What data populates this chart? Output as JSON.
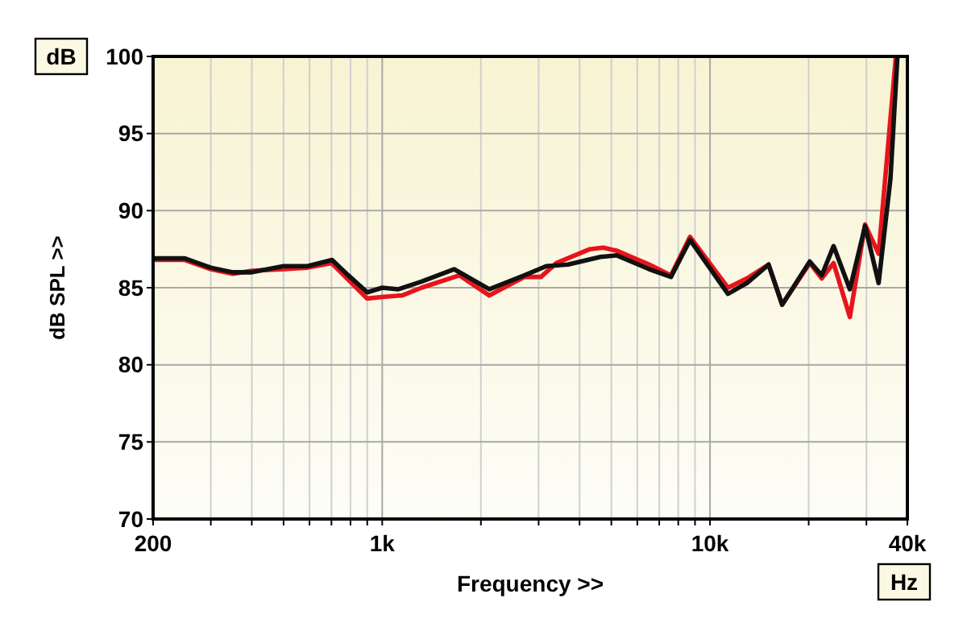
{
  "chart_data": {
    "type": "line",
    "xlabel": "Frequency >>",
    "ylabel": "dB SPL >>",
    "annotations": [
      "dB",
      "Hz"
    ],
    "log": "x",
    "grid": true,
    "marker": "none",
    "line_style": "solid",
    "xlim": [
      200,
      40000
    ],
    "ylim": [
      70,
      100
    ],
    "xticks": [
      200,
      {
        "value": 300,
        "label": null
      },
      {
        "value": 400,
        "label": null
      },
      {
        "value": 500,
        "label": null
      },
      {
        "value": 600,
        "label": null
      },
      {
        "value": 700,
        "label": null
      },
      {
        "value": 800,
        "label": null
      },
      {
        "value": 900,
        "label": null
      },
      {
        "value": 1000,
        "label": "1k"
      },
      {
        "value": 2000,
        "label": null
      },
      {
        "value": 3000,
        "label": null
      },
      {
        "value": 4000,
        "label": null
      },
      {
        "value": 5000,
        "label": null
      },
      {
        "value": 6000,
        "label": null
      },
      {
        "value": 7000,
        "label": null
      },
      {
        "value": 8000,
        "label": null
      },
      {
        "value": 9000,
        "label": null
      },
      {
        "value": 10000,
        "label": "10k"
      },
      {
        "value": 20000,
        "label": null
      },
      {
        "value": 30000,
        "label": null
      },
      {
        "value": 40000,
        "label": "40k"
      }
    ],
    "yticks": [
      70,
      75,
      80,
      85,
      90,
      95,
      100
    ],
    "series": [
      {
        "color": "#e8141c",
        "x": [
          200,
          250,
          300,
          350,
          400,
          500,
          592,
          700,
          900,
          1000,
          1150,
          1318,
          1720,
          2122,
          2717,
          3050,
          3400,
          4300,
          4720,
          5194,
          6526,
          7600,
          8690,
          11340,
          12950,
          15090,
          16600,
          20150,
          21920,
          23820,
          26710,
          29720,
          32690,
          36900
        ],
        "values": [
          86.8,
          86.8,
          86.2,
          85.9,
          86.1,
          86.2,
          86.3,
          86.6,
          84.3,
          84.4,
          84.5,
          85.0,
          85.8,
          84.5,
          85.7,
          85.7,
          86.6,
          87.5,
          87.6,
          87.4,
          86.5,
          85.8,
          88.3,
          85.0,
          85.6,
          86.5,
          83.9,
          86.6,
          85.6,
          86.6,
          83.1,
          89.1,
          87.2,
          100
        ]
      },
      {
        "color": "#111111",
        "x": [
          200,
          250,
          300,
          350,
          400,
          500,
          592,
          703,
          788,
          900,
          1000,
          1120,
          1318,
          1656,
          2122,
          2717,
          3165,
          3687,
          4634,
          5194,
          6526,
          7600,
          8690,
          11340,
          12950,
          15090,
          16600,
          20150,
          21920,
          23820,
          26710,
          29720,
          32690,
          35530,
          37300
        ],
        "values": [
          86.9,
          86.9,
          86.3,
          86.0,
          86.0,
          86.4,
          86.4,
          86.8,
          85.8,
          84.7,
          85.0,
          84.9,
          85.4,
          86.2,
          84.9,
          85.8,
          86.4,
          86.5,
          87.0,
          87.1,
          86.2,
          85.7,
          88.1,
          84.6,
          85.3,
          86.5,
          83.9,
          86.7,
          85.8,
          87.7,
          84.9,
          89.0,
          85.3,
          92.1,
          100
        ]
      }
    ]
  }
}
